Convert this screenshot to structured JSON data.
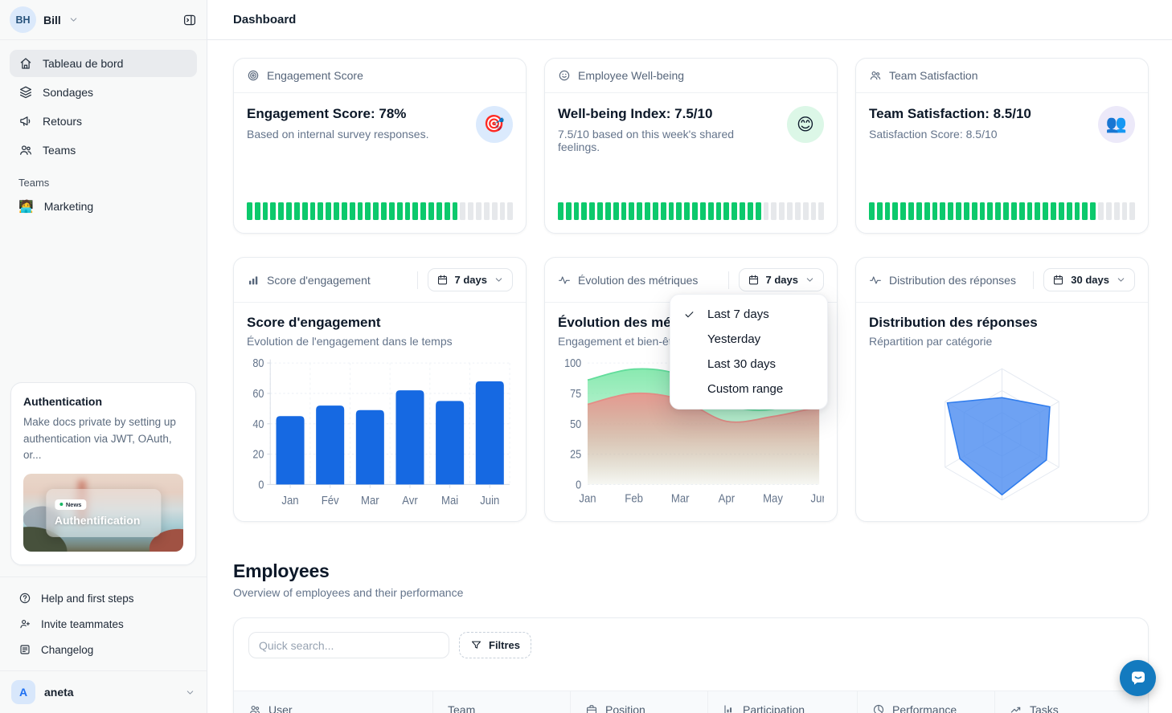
{
  "sidebar": {
    "workspace": {
      "initials": "BH",
      "name": "Bill"
    },
    "nav": [
      {
        "label": "Tableau de bord",
        "icon": "home",
        "active": true
      },
      {
        "label": "Sondages",
        "icon": "layers",
        "active": false
      },
      {
        "label": "Retours",
        "icon": "megaphone",
        "active": false
      },
      {
        "label": "Teams",
        "icon": "users",
        "active": false
      }
    ],
    "teams_section_label": "Teams",
    "teams": [
      {
        "label": "Marketing",
        "emoji": "🧑‍💻"
      }
    ],
    "auth_card": {
      "title": "Authentication",
      "description": "Make docs private by setting up authentication via JWT, OAuth, or...",
      "badge": "News",
      "image_title": "Authentification"
    },
    "footer_nav": [
      {
        "label": "Help and first steps",
        "icon": "help"
      },
      {
        "label": "Invite teammates",
        "icon": "user-plus"
      },
      {
        "label": "Changelog",
        "icon": "changelog"
      }
    ],
    "account": {
      "initial": "A",
      "name": "aneta"
    }
  },
  "header": {
    "title": "Dashboard"
  },
  "kpis": [
    {
      "header": "Engagement Score",
      "header_icon": "target",
      "title": "Engagement Score: 78%",
      "subtitle": "Based on internal survey responses.",
      "emoji": "🎯",
      "emoji_bg": "#dbeafd",
      "progress_percent": 78
    },
    {
      "header": "Employee Well-being",
      "header_icon": "smile",
      "title": "Well-being Index: 7.5/10",
      "subtitle": "7.5/10 based on this week's shared feelings.",
      "emoji": "😊",
      "emoji_bg": "#dcf7e7",
      "progress_percent": 75
    },
    {
      "header": "Team Satisfaction",
      "header_icon": "users",
      "title": "Team Satisfaction: 8.5/10",
      "subtitle": "Satisfaction Score: 8.5/10",
      "emoji": "👥",
      "emoji_bg": "#ece9f9",
      "progress_percent": 85
    }
  ],
  "chart_cards": [
    {
      "header": "Score d'engagement",
      "header_icon": "bar-mini",
      "period": "7 days",
      "title": "Score d'engagement",
      "subtitle": "Évolution de l'engagement dans le temps"
    },
    {
      "header": "Évolution des métriques",
      "header_icon": "pulse",
      "period": "7 days",
      "title": "Évolution des métriques",
      "subtitle": "Engagement et bien-être"
    },
    {
      "header": "Distribution des réponses",
      "header_icon": "pulse",
      "period": "30 days",
      "title": "Distribution des réponses",
      "subtitle": "Répartition par catégorie"
    }
  ],
  "period_menu": {
    "items": [
      {
        "label": "Last 7 days",
        "checked": true
      },
      {
        "label": "Yesterday",
        "checked": false
      },
      {
        "label": "Last 30 days",
        "checked": false
      },
      {
        "label": "Custom range",
        "checked": false
      }
    ]
  },
  "employees": {
    "title": "Employees",
    "subtitle": "Overview of employees and their performance",
    "search_placeholder": "Quick search...",
    "filter_label": "Filtres",
    "columns": [
      {
        "label": "User",
        "icon": "users"
      },
      {
        "label": "Team",
        "icon": ""
      },
      {
        "label": "Position",
        "icon": "briefcase"
      },
      {
        "label": "Participation",
        "icon": "bar-chart"
      },
      {
        "label": "Performance",
        "icon": "pie-chart"
      },
      {
        "label": "Tasks",
        "icon": "trending-up"
      }
    ]
  },
  "chart_data": [
    {
      "type": "bar",
      "title": "Score d'engagement",
      "categories": [
        "Jan",
        "Fév",
        "Mar",
        "Avr",
        "Mai",
        "Juin"
      ],
      "values": [
        45,
        52,
        49,
        62,
        55,
        68
      ],
      "ylim": [
        0,
        80
      ],
      "yticks": [
        0,
        20,
        40,
        60,
        80
      ],
      "bar_color": "#1669e2",
      "grid": true,
      "legend": false
    },
    {
      "type": "area",
      "title": "Évolution des métriques",
      "categories": [
        "Jan",
        "Feb",
        "Mar",
        "Apr",
        "May",
        "Jun"
      ],
      "series": [
        {
          "name": "Engagement",
          "fill": "#83e8ac",
          "stroke": "#62dd9b",
          "values": [
            86,
            95,
            90,
            66,
            62,
            78
          ]
        },
        {
          "name": "Bien-être",
          "fill": "#e9958e",
          "stroke": "#e48d86",
          "values": [
            66,
            75,
            70,
            52,
            56,
            64
          ]
        }
      ],
      "ylim": [
        0,
        100
      ],
      "yticks": [
        0,
        25,
        50,
        75,
        100
      ],
      "grid": true,
      "legend": false
    },
    {
      "type": "radar",
      "title": "Distribution des réponses",
      "axes_count": 6,
      "values_fraction": [
        0.56,
        0.84,
        0.78,
        0.92,
        0.74,
        0.96
      ],
      "max": 1,
      "fill_color": "#4a8bf0",
      "fill_opacity": 0.8,
      "stroke_color": "#2f7ced",
      "grid_levels": 3
    }
  ],
  "progress": {
    "segments": 34,
    "on_color": "#0cc96c",
    "off_color": "#e6e8eb"
  }
}
